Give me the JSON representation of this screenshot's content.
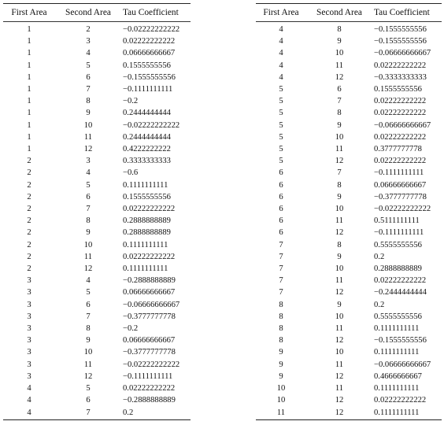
{
  "headers": {
    "first": "First Area",
    "second": "Second Area",
    "tau": "Tau Coefficient"
  },
  "tables": {
    "left": {
      "rows": [
        [
          "1",
          "2",
          "−0.02222222222"
        ],
        [
          "1",
          "3",
          "0.02222222222"
        ],
        [
          "1",
          "4",
          "0.06666666667"
        ],
        [
          "1",
          "5",
          "0.1555555556"
        ],
        [
          "1",
          "6",
          "−0.1555555556"
        ],
        [
          "1",
          "7",
          "−0.1111111111"
        ],
        [
          "1",
          "8",
          "−0.2"
        ],
        [
          "1",
          "9",
          "0.2444444444"
        ],
        [
          "1",
          "10",
          "−0.02222222222"
        ],
        [
          "1",
          "11",
          "0.2444444444"
        ],
        [
          "1",
          "12",
          "0.4222222222"
        ],
        [
          "2",
          "3",
          "0.3333333333"
        ],
        [
          "2",
          "4",
          "−0.6"
        ],
        [
          "2",
          "5",
          "0.1111111111"
        ],
        [
          "2",
          "6",
          "0.1555555556"
        ],
        [
          "2",
          "7",
          "0.02222222222"
        ],
        [
          "2",
          "8",
          "0.2888888889"
        ],
        [
          "2",
          "9",
          "0.2888888889"
        ],
        [
          "2",
          "10",
          "0.1111111111"
        ],
        [
          "2",
          "11",
          "0.02222222222"
        ],
        [
          "2",
          "12",
          "0.1111111111"
        ],
        [
          "3",
          "4",
          "−0.2888888889"
        ],
        [
          "3",
          "5",
          "0.06666666667"
        ],
        [
          "3",
          "6",
          "−0.06666666667"
        ],
        [
          "3",
          "7",
          "−0.3777777778"
        ],
        [
          "3",
          "8",
          "−0.2"
        ],
        [
          "3",
          "9",
          "0.06666666667"
        ],
        [
          "3",
          "10",
          "−0.3777777778"
        ],
        [
          "3",
          "11",
          "−0.02222222222"
        ],
        [
          "3",
          "12",
          "−0.1111111111"
        ],
        [
          "4",
          "5",
          "0.02222222222"
        ],
        [
          "4",
          "6",
          "−0.2888888889"
        ],
        [
          "4",
          "7",
          "0.2"
        ]
      ]
    },
    "right": {
      "rows": [
        [
          "4",
          "8",
          "−0.1555555556"
        ],
        [
          "4",
          "9",
          "−0.1555555556"
        ],
        [
          "4",
          "10",
          "−0.06666666667"
        ],
        [
          "4",
          "11",
          "0.02222222222"
        ],
        [
          "4",
          "12",
          "−0.3333333333"
        ],
        [
          "5",
          "6",
          "0.1555555556"
        ],
        [
          "5",
          "7",
          "0.02222222222"
        ],
        [
          "5",
          "8",
          "0.02222222222"
        ],
        [
          "5",
          "9",
          "−0.06666666667"
        ],
        [
          "5",
          "10",
          "0.02222222222"
        ],
        [
          "5",
          "11",
          "0.3777777778"
        ],
        [
          "5",
          "12",
          "0.02222222222"
        ],
        [
          "6",
          "7",
          "−0.1111111111"
        ],
        [
          "6",
          "8",
          "0.06666666667"
        ],
        [
          "6",
          "9",
          "−0.3777777778"
        ],
        [
          "6",
          "10",
          "−0.02222222222"
        ],
        [
          "6",
          "11",
          "0.5111111111"
        ],
        [
          "6",
          "12",
          "−0.1111111111"
        ],
        [
          "7",
          "8",
          "0.5555555556"
        ],
        [
          "7",
          "9",
          "0.2"
        ],
        [
          "7",
          "10",
          "0.2888888889"
        ],
        [
          "7",
          "11",
          "0.02222222222"
        ],
        [
          "7",
          "12",
          "−0.2444444444"
        ],
        [
          "8",
          "9",
          "0.2"
        ],
        [
          "8",
          "10",
          "0.5555555556"
        ],
        [
          "8",
          "11",
          "0.1111111111"
        ],
        [
          "8",
          "12",
          "−0.1555555556"
        ],
        [
          "9",
          "10",
          "0.1111111111"
        ],
        [
          "9",
          "11",
          "−0.06666666667"
        ],
        [
          "9",
          "12",
          "0.4666666667"
        ],
        [
          "10",
          "11",
          "0.1111111111"
        ],
        [
          "10",
          "12",
          "0.02222222222"
        ],
        [
          "11",
          "12",
          "0.1111111111"
        ]
      ]
    }
  }
}
